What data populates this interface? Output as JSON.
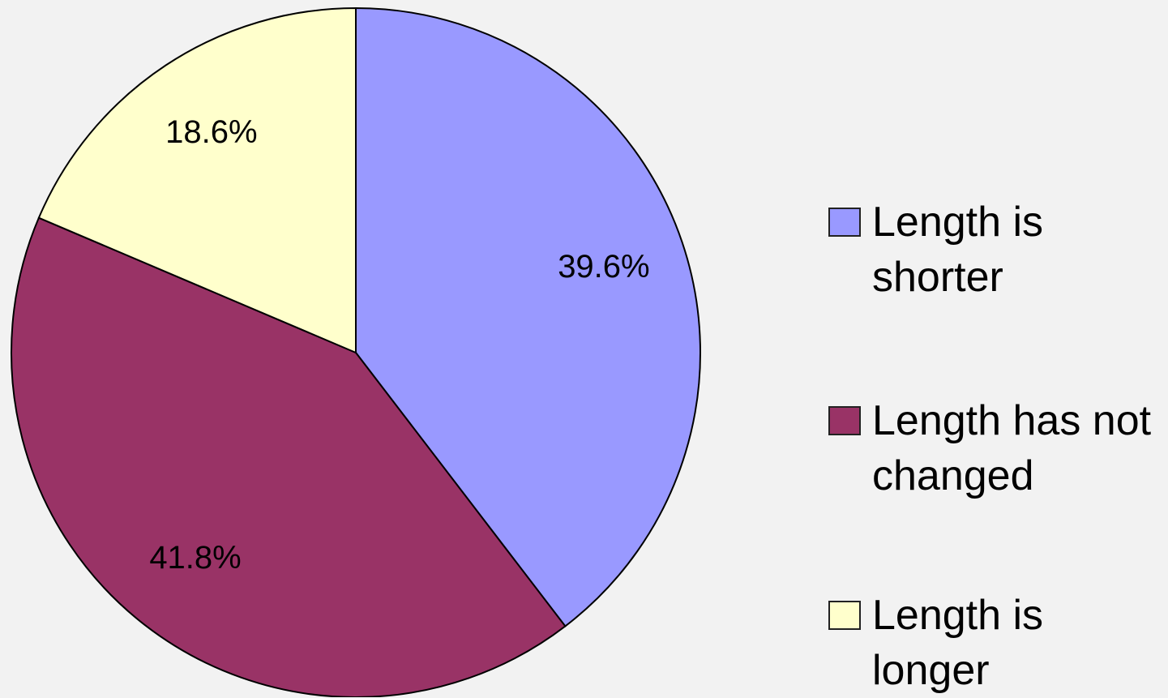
{
  "chart_data": {
    "type": "pie",
    "categories": [
      "Length is shorter",
      "Length has not changed",
      "Length is longer"
    ],
    "values": [
      39.6,
      41.8,
      18.6
    ],
    "value_labels": [
      "39.6%",
      "41.8%",
      "18.6%"
    ],
    "colors": [
      "#9999ff",
      "#993366",
      "#ffffcc"
    ],
    "legend": "right"
  }
}
